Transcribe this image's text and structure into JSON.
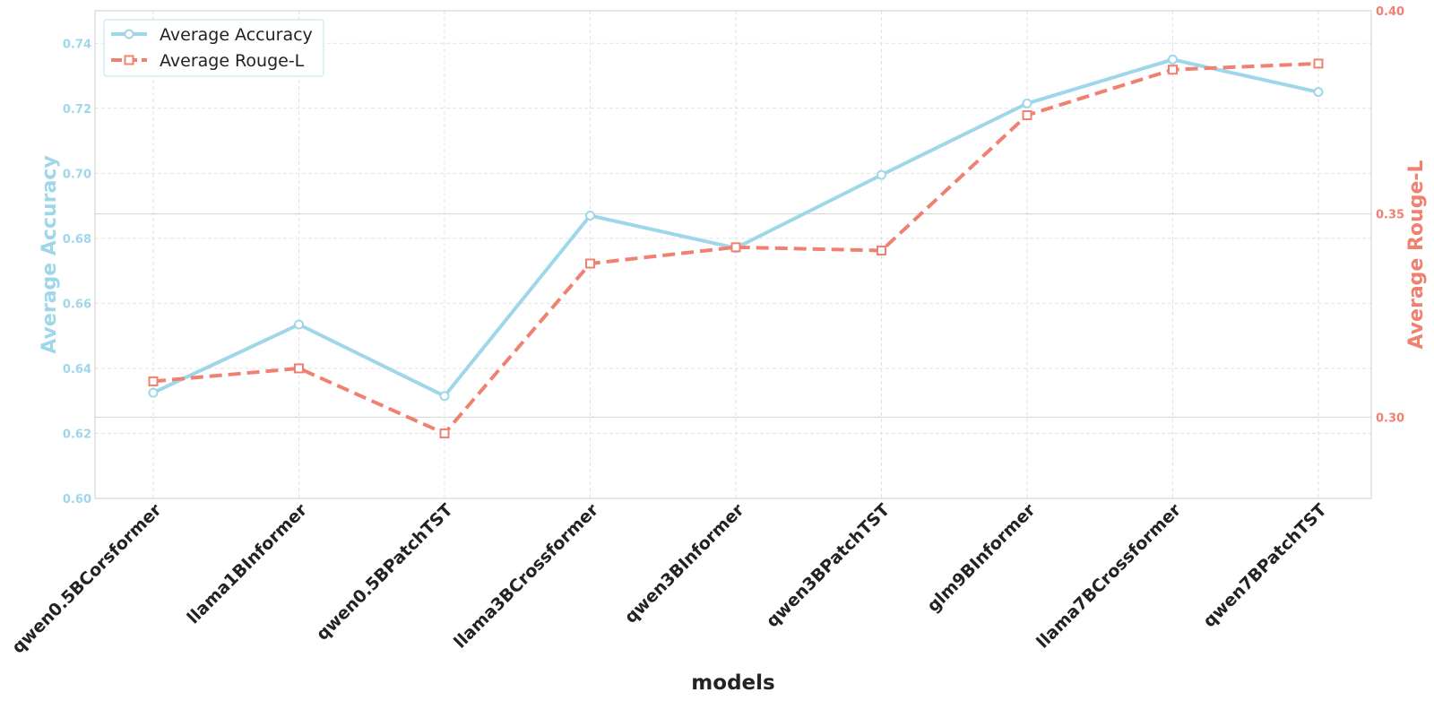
{
  "chart_data": {
    "type": "line",
    "xlabel": "models",
    "categories": [
      "qwen0.5BCorsformer",
      "llama1BInformer",
      "qwen0.5BPatchTST",
      "llama3BCrossformer",
      "qwen3BInformer",
      "qwen3BPatchTST",
      "glm9BInformer",
      "llama7BCrossformer",
      "qwen7BPatchTST"
    ],
    "y_left": {
      "label": "Average Accuracy",
      "range": [
        0.6,
        0.75
      ],
      "ticks": [
        "0.60",
        "0.62",
        "0.64",
        "0.66",
        "0.68",
        "0.70",
        "0.72",
        "0.74"
      ],
      "color": "#9ed6ea"
    },
    "y_right": {
      "label": "Average Rouge-L",
      "range": [
        0.28,
        0.4
      ],
      "ticks": [
        "0.30",
        "0.35",
        "0.40"
      ],
      "color": "#f08070"
    },
    "series": [
      {
        "name": "Average Accuracy",
        "axis": "left",
        "color": "#9ed6ea",
        "line_style": "solid",
        "marker": "circle",
        "values": [
          0.6325,
          0.6535,
          0.6315,
          0.687,
          0.677,
          0.6995,
          0.7215,
          0.735,
          0.725
        ]
      },
      {
        "name": "Average Rouge-L",
        "axis": "right",
        "color": "#f08070",
        "line_style": "dashed",
        "marker": "square",
        "values": [
          0.3088,
          0.312,
          0.296,
          0.3378,
          0.3418,
          0.341,
          0.3743,
          0.3855,
          0.387
        ]
      }
    ],
    "grid": true,
    "legend": {
      "position": "top-left",
      "entries": [
        "Average Accuracy",
        "Average Rouge-L"
      ]
    }
  }
}
